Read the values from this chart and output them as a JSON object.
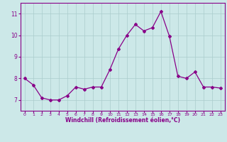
{
  "x": [
    0,
    1,
    2,
    3,
    4,
    5,
    6,
    7,
    8,
    9,
    10,
    11,
    12,
    13,
    14,
    15,
    16,
    17,
    18,
    19,
    20,
    21,
    22,
    23
  ],
  "y": [
    8.0,
    7.7,
    7.1,
    7.0,
    7.0,
    7.2,
    7.6,
    7.5,
    7.6,
    7.6,
    8.4,
    9.35,
    10.0,
    10.5,
    10.2,
    10.35,
    11.1,
    9.95,
    8.1,
    8.0,
    8.3,
    7.6,
    7.6,
    7.55
  ],
  "line_color": "#880088",
  "marker": "D",
  "marker_size": 2.0,
  "bg_color": "#cce8e8",
  "grid_color": "#aacccc",
  "xlabel": "Windchill (Refroidissement éolien,°C)",
  "xlabel_color": "#880088",
  "tick_color": "#880088",
  "spine_color": "#880088",
  "ylim": [
    6.5,
    11.5
  ],
  "xlim": [
    -0.5,
    23.5
  ],
  "yticks": [
    7,
    8,
    9,
    10,
    11
  ],
  "xticks": [
    0,
    1,
    2,
    3,
    4,
    5,
    6,
    7,
    8,
    9,
    10,
    11,
    12,
    13,
    14,
    15,
    16,
    17,
    18,
    19,
    20,
    21,
    22,
    23
  ]
}
